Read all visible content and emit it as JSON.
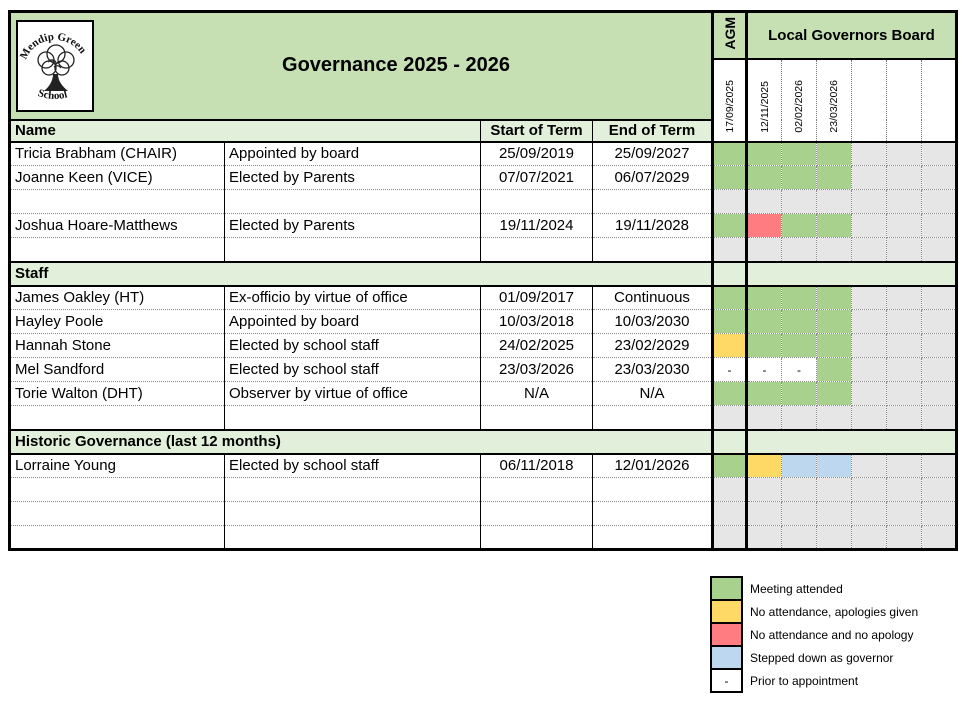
{
  "logo": {
    "top_text": "Mendip Green",
    "bottom_text": "School"
  },
  "header": {
    "title": "Governance 2025 - 2026",
    "agm_label": "AGM",
    "board_label": "Local Governors Board",
    "agm_date": "17/09/2025",
    "meeting_dates": [
      "12/11/2025",
      "02/02/2026",
      "23/03/2026",
      "",
      "",
      ""
    ]
  },
  "columns": {
    "name": "Name",
    "start": "Start of Term",
    "end": "End of Term"
  },
  "sections": [
    {
      "band": null,
      "rows": [
        {
          "name": "Tricia Brabham (CHAIR)",
          "appointment": "Appointed by board",
          "start": "25/09/2019",
          "end": "25/09/2027",
          "attendance": [
            "attended",
            "attended",
            "attended",
            "attended",
            "unused",
            "unused",
            "unused"
          ]
        },
        {
          "name": "Joanne Keen (VICE)",
          "appointment": "Elected by Parents",
          "start": "07/07/2021",
          "end": "06/07/2029",
          "attendance": [
            "attended",
            "attended",
            "attended",
            "attended",
            "unused",
            "unused",
            "unused"
          ]
        },
        {
          "name": "",
          "appointment": "",
          "start": "",
          "end": "",
          "attendance": [
            "unused",
            "unused",
            "unused",
            "unused",
            "unused",
            "unused",
            "unused"
          ]
        },
        {
          "name": "Joshua Hoare-Matthews",
          "appointment": "Elected by Parents",
          "start": "19/11/2024",
          "end": "19/11/2028",
          "attendance": [
            "attended",
            "no_apology",
            "attended",
            "attended",
            "unused",
            "unused",
            "unused"
          ]
        },
        {
          "name": "",
          "appointment": "",
          "start": "",
          "end": "",
          "attendance": [
            "unused",
            "unused",
            "unused",
            "unused",
            "unused",
            "unused",
            "unused"
          ]
        }
      ]
    },
    {
      "band": "Staff",
      "rows": [
        {
          "name": "James Oakley (HT)",
          "appointment": "Ex-officio by virtue of office",
          "start": "01/09/2017",
          "end": "Continuous",
          "attendance": [
            "attended",
            "attended",
            "attended",
            "attended",
            "unused",
            "unused",
            "unused"
          ]
        },
        {
          "name": "Hayley Poole",
          "appointment": "Appointed by board",
          "start": "10/03/2018",
          "end": "10/03/2030",
          "attendance": [
            "attended",
            "attended",
            "attended",
            "attended",
            "unused",
            "unused",
            "unused"
          ]
        },
        {
          "name": "Hannah Stone",
          "appointment": "Elected by school staff",
          "start": "24/02/2025",
          "end": "23/02/2029",
          "attendance": [
            "apologies",
            "attended",
            "attended",
            "attended",
            "unused",
            "unused",
            "unused"
          ]
        },
        {
          "name": "Mel Sandford",
          "appointment": "Elected by school staff",
          "start": "23/03/2026",
          "end": "23/03/2030",
          "attendance": [
            "prior",
            "prior",
            "prior",
            "attended",
            "unused",
            "unused",
            "unused"
          ]
        },
        {
          "name": "Torie Walton (DHT)",
          "appointment": "Observer by virtue of office",
          "start": "N/A",
          "end": "N/A",
          "attendance": [
            "attended",
            "attended",
            "attended",
            "attended",
            "unused",
            "unused",
            "unused"
          ]
        },
        {
          "name": "",
          "appointment": "",
          "start": "",
          "end": "",
          "attendance": [
            "unused",
            "unused",
            "unused",
            "unused",
            "unused",
            "unused",
            "unused"
          ]
        }
      ]
    },
    {
      "band": "Historic Governance (last 12 months)",
      "rows": [
        {
          "name": "Lorraine Young",
          "appointment": "Elected by school staff",
          "start": "06/11/2018",
          "end": "12/01/2026",
          "attendance": [
            "attended",
            "apologies",
            "stepped_down",
            "stepped_down",
            "unused",
            "unused",
            "unused"
          ]
        },
        {
          "name": "",
          "appointment": "",
          "start": "",
          "end": "",
          "attendance": [
            "unused",
            "unused",
            "unused",
            "unused",
            "unused",
            "unused",
            "unused"
          ]
        },
        {
          "name": "",
          "appointment": "",
          "start": "",
          "end": "",
          "attendance": [
            "unused",
            "unused",
            "unused",
            "unused",
            "unused",
            "unused",
            "unused"
          ]
        },
        {
          "name": "",
          "appointment": "",
          "start": "",
          "end": "",
          "attendance": [
            "unused",
            "unused",
            "unused",
            "unused",
            "unused",
            "unused",
            "unused"
          ]
        }
      ]
    }
  ],
  "legend": [
    {
      "code": "attended",
      "mark": "",
      "label": "Meeting attended"
    },
    {
      "code": "apologies",
      "mark": "",
      "label": "No attendance, apologies given"
    },
    {
      "code": "no_apology",
      "mark": "",
      "label": "No attendance and no apology"
    },
    {
      "code": "stepped_down",
      "mark": "",
      "label": "Stepped down as governor"
    },
    {
      "code": "prior",
      "mark": "-",
      "label": "Prior to appointment"
    }
  ],
  "prior_mark": "-",
  "colors": {
    "attended": "#A9D18E",
    "apologies": "#FFD966",
    "no_apology": "#FF7C80",
    "stepped_down": "#BDD7EE",
    "unused": "#E7E6E6",
    "header_green": "#C6E0B4",
    "band_green": "#E2EFDA"
  }
}
